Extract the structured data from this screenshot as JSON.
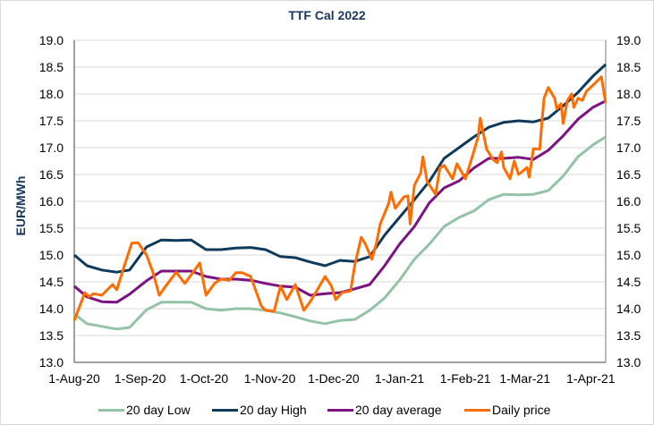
{
  "chart_data": {
    "type": "line",
    "title": "TTF Cal 2022",
    "ylabel": "EUR/MWh",
    "xlabel": "",
    "ylim": [
      13.0,
      19.0
    ],
    "yticks": [
      "13.0",
      "13.5",
      "14.0",
      "14.5",
      "15.0",
      "15.5",
      "16.0",
      "16.5",
      "17.0",
      "17.5",
      "18.0",
      "18.5",
      "19.0"
    ],
    "y_axis_secondary_mirrors_primary": true,
    "xlim": [
      "2020-08-01",
      "2021-04-08"
    ],
    "xticks": [
      {
        "date": "2020-08-01",
        "label": "1-Aug-20"
      },
      {
        "date": "2020-09-01",
        "label": "1-Sep-20"
      },
      {
        "date": "2020-10-01",
        "label": "1-Oct-20"
      },
      {
        "date": "2020-11-01",
        "label": "1-Nov-20"
      },
      {
        "date": "2020-12-01",
        "label": "1-Dec-20"
      },
      {
        "date": "2021-01-01",
        "label": "1-Jan-21"
      },
      {
        "date": "2021-02-01",
        "label": "1-Feb-21"
      },
      {
        "date": "2021-03-01",
        "label": "1-Mar-21"
      },
      {
        "date": "2021-04-01",
        "label": "1-Apr-21"
      }
    ],
    "grid": true,
    "legend_position": "bottom",
    "dates": [
      "2020-08-01",
      "2020-08-07",
      "2020-08-14",
      "2020-08-21",
      "2020-08-27",
      "2020-09-04",
      "2020-09-11",
      "2020-09-18",
      "2020-09-25",
      "2020-10-02",
      "2020-10-09",
      "2020-10-16",
      "2020-10-23",
      "2020-10-30",
      "2020-11-06",
      "2020-11-13",
      "2020-11-20",
      "2020-11-27",
      "2020-12-04",
      "2020-12-11",
      "2020-12-18",
      "2020-12-25",
      "2021-01-01",
      "2021-01-08",
      "2021-01-15",
      "2021-01-22",
      "2021-01-29",
      "2021-02-05",
      "2021-02-12",
      "2021-02-19",
      "2021-02-26",
      "2021-03-05",
      "2021-03-12",
      "2021-03-19",
      "2021-03-26",
      "2021-04-02",
      "2021-04-08"
    ],
    "series": [
      {
        "name": "20 day Low",
        "color": "#93c2a6",
        "values": [
          13.9,
          13.72,
          13.67,
          13.62,
          13.65,
          13.98,
          14.12,
          14.12,
          14.12,
          14.0,
          13.97,
          14.0,
          14.0,
          13.97,
          13.92,
          13.85,
          13.77,
          13.72,
          13.78,
          13.8,
          13.97,
          14.2,
          14.53,
          14.92,
          15.2,
          15.53,
          15.7,
          15.82,
          16.03,
          16.13,
          16.12,
          16.13,
          16.2,
          16.47,
          16.83,
          17.05,
          17.2
        ]
      },
      {
        "name": "20 day High",
        "color": "#0e3a5c",
        "values": [
          15.0,
          14.8,
          14.72,
          14.68,
          14.72,
          15.15,
          15.28,
          15.27,
          15.28,
          15.1,
          15.1,
          15.13,
          15.14,
          15.1,
          14.97,
          14.95,
          14.87,
          14.8,
          14.9,
          14.88,
          14.97,
          15.37,
          15.7,
          16.03,
          16.37,
          16.8,
          17.0,
          17.2,
          17.38,
          17.47,
          17.5,
          17.48,
          17.55,
          17.78,
          18.03,
          18.33,
          18.55
        ]
      },
      {
        "name": "20 day average",
        "color": "#7b1380",
        "values": [
          14.42,
          14.22,
          14.13,
          14.12,
          14.27,
          14.52,
          14.7,
          14.7,
          14.7,
          14.6,
          14.55,
          14.55,
          14.53,
          14.47,
          14.42,
          14.4,
          14.25,
          14.28,
          14.3,
          14.37,
          14.45,
          14.8,
          15.2,
          15.53,
          15.97,
          16.25,
          16.38,
          16.62,
          16.8,
          16.8,
          16.82,
          16.78,
          16.95,
          17.22,
          17.53,
          17.75,
          17.87
        ]
      },
      {
        "name": "Daily price",
        "color": "#ff6d00",
        "points": [
          [
            "2020-08-01",
            13.78
          ],
          [
            "2020-08-06",
            14.3
          ],
          [
            "2020-08-08",
            14.22
          ],
          [
            "2020-08-10",
            14.28
          ],
          [
            "2020-08-14",
            14.25
          ],
          [
            "2020-08-19",
            14.45
          ],
          [
            "2020-08-21",
            14.35
          ],
          [
            "2020-08-25",
            14.85
          ],
          [
            "2020-08-28",
            15.22
          ],
          [
            "2020-08-31",
            15.23
          ],
          [
            "2020-09-04",
            15.0
          ],
          [
            "2020-09-07",
            14.68
          ],
          [
            "2020-09-10",
            14.25
          ],
          [
            "2020-09-13",
            14.42
          ],
          [
            "2020-09-18",
            14.68
          ],
          [
            "2020-09-22",
            14.47
          ],
          [
            "2020-09-25",
            14.63
          ],
          [
            "2020-09-29",
            14.85
          ],
          [
            "2020-10-02",
            14.25
          ],
          [
            "2020-10-06",
            14.47
          ],
          [
            "2020-10-09",
            14.55
          ],
          [
            "2020-10-13",
            14.53
          ],
          [
            "2020-10-16",
            14.67
          ],
          [
            "2020-10-19",
            14.67
          ],
          [
            "2020-10-23",
            14.6
          ],
          [
            "2020-10-28",
            14.05
          ],
          [
            "2020-10-30",
            13.97
          ],
          [
            "2020-11-03",
            13.95
          ],
          [
            "2020-11-06",
            14.42
          ],
          [
            "2020-11-09",
            14.17
          ],
          [
            "2020-11-13",
            14.45
          ],
          [
            "2020-11-17",
            13.97
          ],
          [
            "2020-11-20",
            14.13
          ],
          [
            "2020-11-23",
            14.33
          ],
          [
            "2020-11-27",
            14.6
          ],
          [
            "2020-11-30",
            14.42
          ],
          [
            "2020-12-02",
            14.17
          ],
          [
            "2020-12-05",
            14.3
          ],
          [
            "2020-12-09",
            14.33
          ],
          [
            "2020-12-11",
            14.82
          ],
          [
            "2020-12-14",
            15.33
          ],
          [
            "2020-12-16",
            15.2
          ],
          [
            "2020-12-19",
            14.92
          ],
          [
            "2020-12-21",
            15.2
          ],
          [
            "2020-12-23",
            15.58
          ],
          [
            "2020-12-27",
            15.97
          ],
          [
            "2020-12-28",
            16.17
          ],
          [
            "2020-12-30",
            15.87
          ],
          [
            "2021-01-03",
            16.08
          ],
          [
            "2021-01-05",
            16.1
          ],
          [
            "2021-01-06",
            15.58
          ],
          [
            "2021-01-08",
            16.3
          ],
          [
            "2021-01-11",
            16.53
          ],
          [
            "2021-01-12",
            16.83
          ],
          [
            "2021-01-14",
            16.37
          ],
          [
            "2021-01-18",
            16.13
          ],
          [
            "2021-01-20",
            16.62
          ],
          [
            "2021-01-22",
            16.67
          ],
          [
            "2021-01-26",
            16.42
          ],
          [
            "2021-01-28",
            16.7
          ],
          [
            "2021-02-01",
            16.42
          ],
          [
            "2021-02-04",
            16.8
          ],
          [
            "2021-02-07",
            17.2
          ],
          [
            "2021-02-08",
            17.55
          ],
          [
            "2021-02-11",
            16.97
          ],
          [
            "2021-02-14",
            16.78
          ],
          [
            "2021-02-16",
            16.72
          ],
          [
            "2021-02-18",
            16.92
          ],
          [
            "2021-02-19",
            16.63
          ],
          [
            "2021-02-22",
            16.42
          ],
          [
            "2021-02-24",
            16.75
          ],
          [
            "2021-02-26",
            16.5
          ],
          [
            "2021-03-02",
            16.63
          ],
          [
            "2021-03-03",
            16.45
          ],
          [
            "2021-03-05",
            16.98
          ],
          [
            "2021-03-08",
            16.97
          ],
          [
            "2021-03-09",
            17.47
          ],
          [
            "2021-03-10",
            17.92
          ],
          [
            "2021-03-12",
            18.12
          ],
          [
            "2021-03-15",
            17.92
          ],
          [
            "2021-03-16",
            17.72
          ],
          [
            "2021-03-18",
            17.82
          ],
          [
            "2021-03-19",
            17.45
          ],
          [
            "2021-03-21",
            17.88
          ],
          [
            "2021-03-23",
            18.0
          ],
          [
            "2021-03-24",
            17.75
          ],
          [
            "2021-03-26",
            17.92
          ],
          [
            "2021-03-28",
            17.88
          ],
          [
            "2021-03-30",
            18.05
          ],
          [
            "2021-04-03",
            18.2
          ],
          [
            "2021-04-06",
            18.32
          ],
          [
            "2021-04-08",
            17.83
          ]
        ]
      }
    ]
  }
}
